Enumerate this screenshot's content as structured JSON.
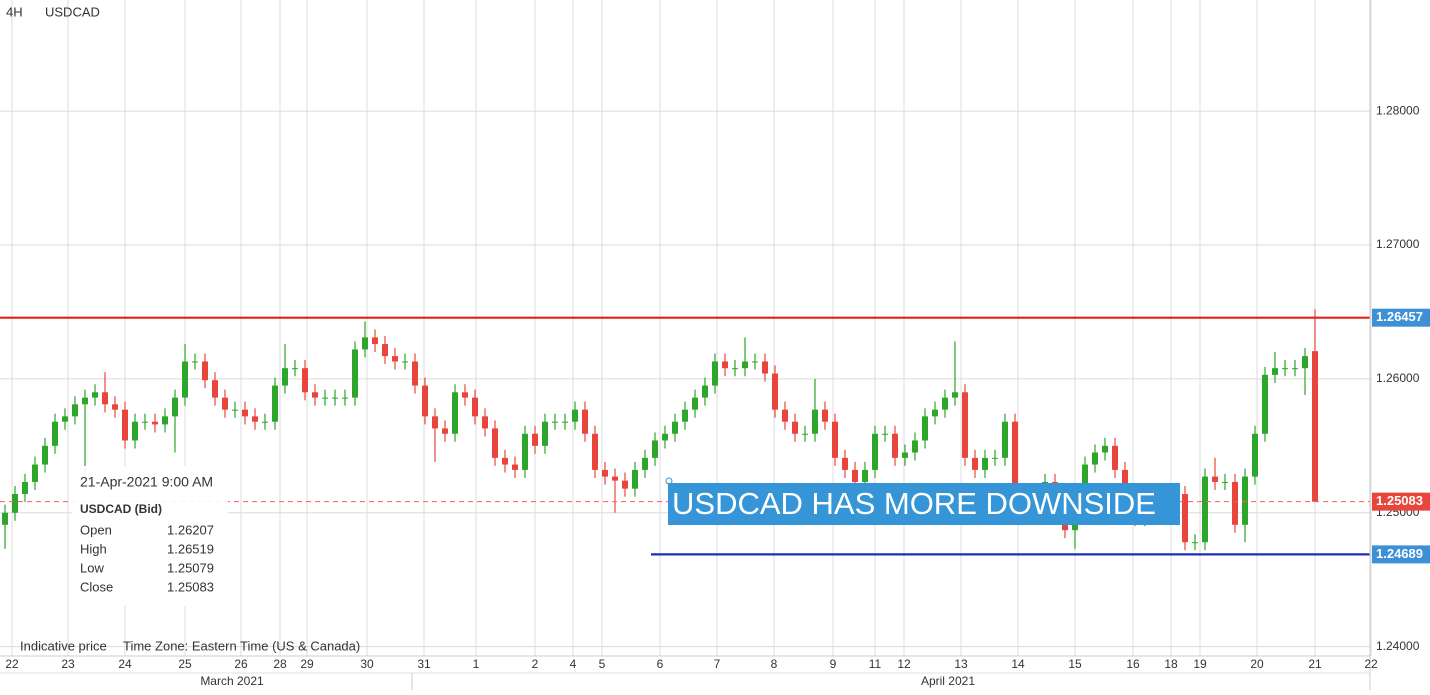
{
  "chart_data": {
    "type": "candlestick",
    "timeframe": "4H",
    "title": "USDCAD",
    "xlim": [
      -0.5,
      136.5
    ],
    "ylim": [
      1.2393,
      1.2883
    ],
    "yticks": [
      {
        "value": 1.24,
        "label": "1.24000"
      },
      {
        "value": 1.25,
        "label": "1.25000"
      },
      {
        "value": 1.26,
        "label": "1.26000"
      },
      {
        "value": 1.27,
        "label": "1.27000"
      },
      {
        "value": 1.28,
        "label": "1.28000"
      }
    ],
    "xticks": [
      {
        "value": 0.7,
        "label": "22"
      },
      {
        "value": 6.3,
        "label": "23"
      },
      {
        "value": 12,
        "label": "24"
      },
      {
        "value": 18,
        "label": "25"
      },
      {
        "value": 23.6,
        "label": "26"
      },
      {
        "value": 27.5,
        "label": "28"
      },
      {
        "value": 30.2,
        "label": "29"
      },
      {
        "value": 36.2,
        "label": "30"
      },
      {
        "value": 41.9,
        "label": "31"
      },
      {
        "value": 47.1,
        "label": "1"
      },
      {
        "value": 53,
        "label": "2"
      },
      {
        "value": 56.8,
        "label": "4"
      },
      {
        "value": 59.7,
        "label": "5"
      },
      {
        "value": 65.5,
        "label": "6"
      },
      {
        "value": 71.2,
        "label": "7"
      },
      {
        "value": 76.9,
        "label": "8"
      },
      {
        "value": 82.8,
        "label": "9"
      },
      {
        "value": 87,
        "label": "11"
      },
      {
        "value": 89.9,
        "label": "12"
      },
      {
        "value": 95.6,
        "label": "13"
      },
      {
        "value": 101.3,
        "label": "14"
      },
      {
        "value": 107,
        "label": "15"
      },
      {
        "value": 112.8,
        "label": "16"
      },
      {
        "value": 116.6,
        "label": "18"
      },
      {
        "value": 119.5,
        "label": "19"
      },
      {
        "value": 125.2,
        "label": "20"
      },
      {
        "value": 131,
        "label": "21"
      },
      {
        "value": 136.6,
        "label": "22"
      }
    ],
    "months": [
      {
        "value": 22.7,
        "label": "March 2021"
      },
      {
        "value": 94.3,
        "label": "April 2021"
      }
    ],
    "grid": true,
    "up_color": "#2ea52b",
    "down_color": "#e8453c",
    "ohlc": {
      "open": [
        1.2491,
        1.25,
        1.2514,
        1.2523,
        1.2536,
        1.255,
        1.2568,
        1.2572,
        1.2581,
        1.2586,
        1.259,
        1.2581,
        1.2577,
        1.2554,
        1.2568,
        1.2568,
        1.2566,
        1.2572,
        1.2586,
        1.2613,
        1.2613,
        1.2599,
        1.2586,
        1.2577,
        1.2577,
        1.2572,
        1.2568,
        1.2568,
        1.2595,
        1.2608,
        1.2608,
        1.259,
        1.2586,
        1.2586,
        1.2586,
        1.2586,
        1.2622,
        1.2631,
        1.2626,
        1.2617,
        1.2613,
        1.2613,
        1.2595,
        1.2572,
        1.2563,
        1.2559,
        1.259,
        1.2586,
        1.2572,
        1.2563,
        1.2541,
        1.2536,
        1.2532,
        1.2559,
        1.255,
        1.2568,
        1.2568,
        1.2568,
        1.2577,
        1.2559,
        1.2532,
        1.2527,
        1.2524,
        1.2518,
        1.2532,
        1.2541,
        1.2554,
        1.2559,
        1.2568,
        1.2577,
        1.2586,
        1.2595,
        1.2613,
        1.2608,
        1.2608,
        1.2613,
        1.2613,
        1.2604,
        1.2577,
        1.2568,
        1.2559,
        1.2559,
        1.2577,
        1.2568,
        1.2541,
        1.2532,
        1.2523,
        1.2532,
        1.2559,
        1.2559,
        1.2541,
        1.2545,
        1.2554,
        1.2572,
        1.2577,
        1.2586,
        1.259,
        1.2541,
        1.2532,
        1.2541,
        1.2541,
        1.2568,
        1.2505,
        1.2514,
        1.2509,
        1.2523,
        1.2505,
        1.2487,
        1.2514,
        1.2536,
        1.2545,
        1.255,
        1.2532,
        1.2514,
        1.2496,
        1.25,
        1.2505,
        1.2509,
        1.2514,
        1.2478,
        1.2478,
        1.2527,
        1.2523,
        1.2523,
        1.2491,
        1.2527,
        1.2559,
        1.2603,
        1.2608,
        1.2608,
        1.2608,
        1.26207
      ],
      "high": [
        1.2506,
        1.252,
        1.2529,
        1.2542,
        1.2556,
        1.2574,
        1.2578,
        1.2587,
        1.2592,
        1.2596,
        1.2605,
        1.2587,
        1.2583,
        1.2574,
        1.2574,
        1.2574,
        1.2578,
        1.2592,
        1.2626,
        1.2619,
        1.2619,
        1.2605,
        1.2592,
        1.2583,
        1.2583,
        1.2578,
        1.2574,
        1.2601,
        1.2626,
        1.2614,
        1.2614,
        1.2596,
        1.2592,
        1.2592,
        1.2592,
        1.2628,
        1.2643,
        1.2637,
        1.2632,
        1.2623,
        1.2619,
        1.2619,
        1.2601,
        1.2578,
        1.2569,
        1.2596,
        1.2596,
        1.2592,
        1.2578,
        1.2569,
        1.2547,
        1.2542,
        1.2565,
        1.2565,
        1.2574,
        1.2574,
        1.2574,
        1.2583,
        1.2583,
        1.2565,
        1.2538,
        1.2533,
        1.253,
        1.2538,
        1.2547,
        1.256,
        1.2565,
        1.2574,
        1.2583,
        1.2592,
        1.2601,
        1.2619,
        1.2619,
        1.2614,
        1.2631,
        1.2619,
        1.2619,
        1.261,
        1.2583,
        1.2574,
        1.2565,
        1.26,
        1.2583,
        1.2574,
        1.2547,
        1.2538,
        1.2538,
        1.2565,
        1.2565,
        1.2565,
        1.2551,
        1.256,
        1.2578,
        1.2583,
        1.2592,
        1.2628,
        1.2596,
        1.2547,
        1.2547,
        1.2547,
        1.2574,
        1.2574,
        1.252,
        1.252,
        1.2529,
        1.2529,
        1.2511,
        1.252,
        1.2542,
        1.2551,
        1.2556,
        1.2556,
        1.2538,
        1.252,
        1.2506,
        1.2511,
        1.2515,
        1.252,
        1.252,
        1.2484,
        1.2533,
        1.2541,
        1.2529,
        1.2529,
        1.2533,
        1.2565,
        1.2609,
        1.262,
        1.2614,
        1.2614,
        1.2623,
        1.26519
      ],
      "low": [
        1.2473,
        1.2494,
        1.2508,
        1.2517,
        1.253,
        1.2544,
        1.2562,
        1.2566,
        1.2527,
        1.258,
        1.2575,
        1.2571,
        1.2548,
        1.2548,
        1.2562,
        1.256,
        1.256,
        1.2545,
        1.258,
        1.2607,
        1.2593,
        1.258,
        1.2571,
        1.2571,
        1.2566,
        1.2562,
        1.2562,
        1.2562,
        1.2589,
        1.2602,
        1.2584,
        1.258,
        1.258,
        1.258,
        1.258,
        1.258,
        1.2616,
        1.262,
        1.2611,
        1.2607,
        1.2607,
        1.2589,
        1.2566,
        1.2538,
        1.2553,
        1.2553,
        1.258,
        1.2566,
        1.2557,
        1.2535,
        1.253,
        1.2526,
        1.2526,
        1.2544,
        1.2544,
        1.2562,
        1.2562,
        1.2562,
        1.2553,
        1.2526,
        1.2521,
        1.25,
        1.2512,
        1.2512,
        1.2526,
        1.2535,
        1.2548,
        1.2553,
        1.2562,
        1.2571,
        1.258,
        1.2589,
        1.2602,
        1.2602,
        1.2602,
        1.2607,
        1.2598,
        1.2571,
        1.2562,
        1.2553,
        1.2553,
        1.2553,
        1.2562,
        1.2535,
        1.2526,
        1.2517,
        1.2517,
        1.2526,
        1.2553,
        1.2535,
        1.2535,
        1.2539,
        1.2548,
        1.2566,
        1.2571,
        1.258,
        1.2535,
        1.2526,
        1.2526,
        1.2535,
        1.2535,
        1.2499,
        1.2499,
        1.2503,
        1.2503,
        1.2499,
        1.2481,
        1.2473,
        1.2508,
        1.253,
        1.2539,
        1.2526,
        1.2508,
        1.249,
        1.249,
        1.2494,
        1.2499,
        1.2503,
        1.2472,
        1.2472,
        1.2472,
        1.2517,
        1.2517,
        1.2485,
        1.2478,
        1.2521,
        1.2553,
        1.2597,
        1.2602,
        1.2602,
        1.2588,
        1.25079
      ],
      "close": [
        1.25,
        1.2514,
        1.2523,
        1.2536,
        1.255,
        1.2568,
        1.2572,
        1.2581,
        1.2586,
        1.259,
        1.2581,
        1.2577,
        1.2554,
        1.2568,
        1.2568,
        1.2566,
        1.2572,
        1.2586,
        1.2613,
        1.2613,
        1.2599,
        1.2586,
        1.2577,
        1.2577,
        1.2572,
        1.2568,
        1.2568,
        1.2595,
        1.2608,
        1.2608,
        1.259,
        1.2586,
        1.2586,
        1.2586,
        1.2586,
        1.2622,
        1.2631,
        1.2626,
        1.2617,
        1.2613,
        1.2613,
        1.2595,
        1.2572,
        1.2563,
        1.2559,
        1.259,
        1.2586,
        1.2572,
        1.2563,
        1.2541,
        1.2536,
        1.2532,
        1.2559,
        1.255,
        1.2568,
        1.2568,
        1.2568,
        1.2577,
        1.2559,
        1.2532,
        1.2527,
        1.2524,
        1.2518,
        1.2532,
        1.2541,
        1.2554,
        1.2559,
        1.2568,
        1.2577,
        1.2586,
        1.2595,
        1.2613,
        1.2608,
        1.2608,
        1.2613,
        1.2613,
        1.2604,
        1.2577,
        1.2568,
        1.2559,
        1.2559,
        1.2577,
        1.2568,
        1.2541,
        1.2532,
        1.2523,
        1.2532,
        1.2559,
        1.2559,
        1.2541,
        1.2545,
        1.2554,
        1.2572,
        1.2577,
        1.2586,
        1.259,
        1.2541,
        1.2532,
        1.2541,
        1.2541,
        1.2568,
        1.2505,
        1.2514,
        1.2509,
        1.2523,
        1.2505,
        1.2487,
        1.2514,
        1.2536,
        1.2545,
        1.255,
        1.2532,
        1.2514,
        1.2496,
        1.25,
        1.2505,
        1.2509,
        1.2514,
        1.2478,
        1.2478,
        1.2527,
        1.2523,
        1.2523,
        1.2491,
        1.2527,
        1.2559,
        1.2603,
        1.2608,
        1.2608,
        1.2608,
        1.2617,
        1.25083
      ]
    },
    "lines": [
      {
        "value": 1.26457,
        "label": "1.26457",
        "color": "#e0201b",
        "label_color": "#3d8fd6",
        "dashed": false,
        "start": -0.5
      },
      {
        "value": 1.25083,
        "label": "1.25083",
        "color": "#f0605a",
        "label_color": "#e8453c",
        "dashed": true,
        "start": -0.5
      },
      {
        "value": 1.24689,
        "label": "1.24689",
        "color": "#1c2db5",
        "label_color": "#3d8fd6",
        "dashed": false,
        "start": 64.6
      }
    ],
    "annotation": "USDCAD HAS MORE DOWNSIDE",
    "info": {
      "date": "21-Apr-2021 9:00 AM",
      "symbol": "USDCAD (Bid)",
      "labels": [
        "Open",
        "High",
        "Low",
        "Close"
      ]
    },
    "footer": [
      "Indicative price",
      "Time Zone: Eastern Time (US & Canada)"
    ]
  }
}
